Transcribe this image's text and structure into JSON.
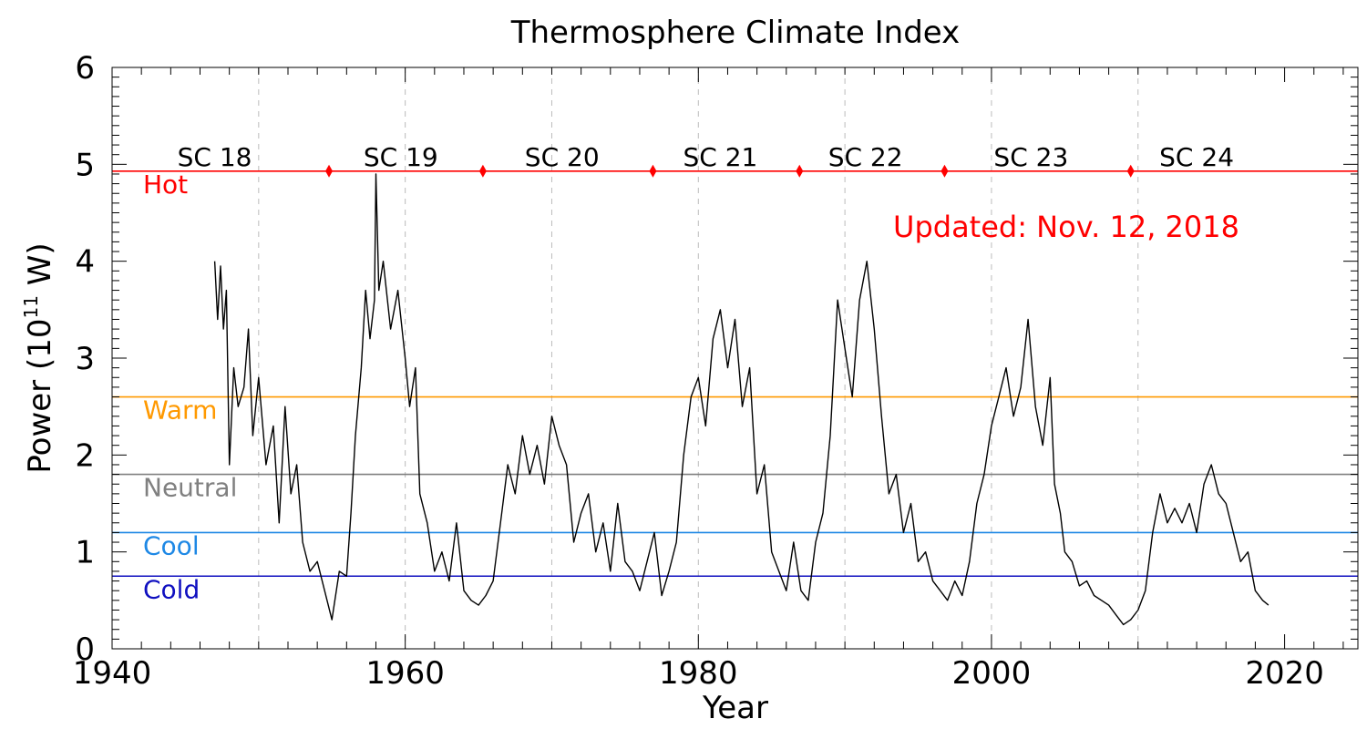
{
  "chart_data": {
    "type": "line",
    "title": "Thermosphere Climate Index",
    "xlabel": "Year",
    "ylabel_main": "Power (10",
    "ylabel_sup": "11",
    "ylabel_end": " W)",
    "annotation": "Updated: Nov. 12, 2018",
    "xlim": [
      1940,
      2025
    ],
    "ylim": [
      0,
      6
    ],
    "x_ticks": [
      1940,
      1960,
      1980,
      2000,
      2020
    ],
    "y_ticks": [
      0,
      1,
      2,
      3,
      4,
      5,
      6
    ],
    "x_grid_dashed": [
      1950,
      1960,
      1970,
      1980,
      1990,
      2000,
      2010
    ],
    "thresholds": [
      {
        "label": "Hot",
        "value": 4.93,
        "color": "#ff0000"
      },
      {
        "label": "Warm",
        "value": 2.6,
        "color": "#ff9900"
      },
      {
        "label": "Neutral",
        "value": 1.8,
        "color": "#808080"
      },
      {
        "label": "Cool",
        "value": 1.2,
        "color": "#1e88e5"
      },
      {
        "label": "Cold",
        "value": 0.75,
        "color": "#1010c0"
      }
    ],
    "cycle_boundaries": [
      1954.8,
      1965.3,
      1976.9,
      1986.9,
      1996.8,
      2009.5
    ],
    "cycles": [
      {
        "label": "SC 18",
        "x": 1947.0
      },
      {
        "label": "SC 19",
        "x": 1959.7
      },
      {
        "label": "SC 20",
        "x": 1970.7
      },
      {
        "label": "SC 21",
        "x": 1981.5
      },
      {
        "label": "SC 22",
        "x": 1991.4
      },
      {
        "label": "SC 23",
        "x": 2002.7
      },
      {
        "label": "SC 24",
        "x": 2014.0
      }
    ],
    "series": [
      {
        "x": [
          1947.0,
          1947.2,
          1947.4,
          1947.6,
          1947.8,
          1948.0,
          1948.3,
          1948.6,
          1949.0,
          1949.3,
          1949.6,
          1950.0,
          1950.5,
          1951.0,
          1951.4,
          1951.8,
          1952.2,
          1952.6,
          1953.0,
          1953.5,
          1954.0,
          1954.5,
          1955.0,
          1955.5,
          1956.0,
          1956.3,
          1956.6,
          1957.0,
          1957.3,
          1957.6,
          1957.9,
          1958.0,
          1958.2,
          1958.5,
          1959.0,
          1959.5,
          1960.0,
          1960.3,
          1960.7,
          1961.0,
          1961.5,
          1962.0,
          1962.5,
          1963.0,
          1963.5,
          1964.0,
          1964.5,
          1965.0,
          1965.5,
          1966.0,
          1966.5,
          1967.0,
          1967.5,
          1968.0,
          1968.5,
          1969.0,
          1969.5,
          1970.0,
          1970.5,
          1971.0,
          1971.5,
          1972.0,
          1972.5,
          1973.0,
          1973.5,
          1974.0,
          1974.5,
          1975.0,
          1975.5,
          1976.0,
          1976.5,
          1977.0,
          1977.5,
          1978.0,
          1978.5,
          1979.0,
          1979.5,
          1980.0,
          1980.5,
          1981.0,
          1981.5,
          1982.0,
          1982.5,
          1983.0,
          1983.5,
          1984.0,
          1984.5,
          1985.0,
          1985.5,
          1986.0,
          1986.5,
          1987.0,
          1987.5,
          1988.0,
          1988.5,
          1989.0,
          1989.5,
          1990.0,
          1990.5,
          1991.0,
          1991.5,
          1992.0,
          1992.5,
          1993.0,
          1993.5,
          1994.0,
          1994.5,
          1995.0,
          1995.5,
          1996.0,
          1996.5,
          1997.0,
          1997.5,
          1998.0,
          1998.5,
          1999.0,
          1999.5,
          2000.0,
          2000.5,
          2001.0,
          2001.5,
          2002.0,
          2002.5,
          2003.0,
          2003.5,
          2004.0,
          2004.3,
          2004.7,
          2005.0,
          2005.5,
          2006.0,
          2006.5,
          2007.0,
          2007.5,
          2008.0,
          2008.5,
          2009.0,
          2009.5,
          2010.0,
          2010.5,
          2011.0,
          2011.5,
          2012.0,
          2012.5,
          2013.0,
          2013.5,
          2014.0,
          2014.5,
          2015.0,
          2015.5,
          2016.0,
          2016.5,
          2017.0,
          2017.5,
          2018.0,
          2018.5,
          2018.9
        ],
        "y": [
          4.0,
          3.4,
          3.95,
          3.3,
          3.7,
          1.9,
          2.9,
          2.5,
          2.7,
          3.3,
          2.2,
          2.8,
          1.9,
          2.3,
          1.3,
          2.5,
          1.6,
          1.9,
          1.1,
          0.8,
          0.9,
          0.6,
          0.3,
          0.8,
          0.75,
          1.4,
          2.2,
          2.9,
          3.7,
          3.2,
          3.6,
          4.9,
          3.7,
          4.0,
          3.3,
          3.7,
          3.0,
          2.5,
          2.9,
          1.6,
          1.3,
          0.8,
          1.0,
          0.7,
          1.3,
          0.6,
          0.5,
          0.45,
          0.55,
          0.7,
          1.3,
          1.9,
          1.6,
          2.2,
          1.8,
          2.1,
          1.7,
          2.4,
          2.1,
          1.9,
          1.1,
          1.4,
          1.6,
          1.0,
          1.3,
          0.8,
          1.5,
          0.9,
          0.8,
          0.6,
          0.9,
          1.2,
          0.55,
          0.8,
          1.1,
          2.0,
          2.6,
          2.8,
          2.3,
          3.2,
          3.5,
          2.9,
          3.4,
          2.5,
          2.9,
          1.6,
          1.9,
          1.0,
          0.8,
          0.6,
          1.1,
          0.6,
          0.5,
          1.1,
          1.4,
          2.2,
          3.6,
          3.1,
          2.6,
          3.6,
          4.0,
          3.3,
          2.4,
          1.6,
          1.8,
          1.2,
          1.5,
          0.9,
          1.0,
          0.7,
          0.6,
          0.5,
          0.7,
          0.55,
          0.9,
          1.5,
          1.8,
          2.3,
          2.6,
          2.9,
          2.4,
          2.7,
          3.4,
          2.5,
          2.1,
          2.8,
          1.7,
          1.4,
          1.0,
          0.9,
          0.65,
          0.7,
          0.55,
          0.5,
          0.45,
          0.35,
          0.25,
          0.3,
          0.4,
          0.6,
          1.2,
          1.6,
          1.3,
          1.45,
          1.3,
          1.5,
          1.2,
          1.7,
          1.9,
          1.6,
          1.5,
          1.2,
          0.9,
          1.0,
          0.6,
          0.5,
          0.45
        ]
      }
    ]
  }
}
